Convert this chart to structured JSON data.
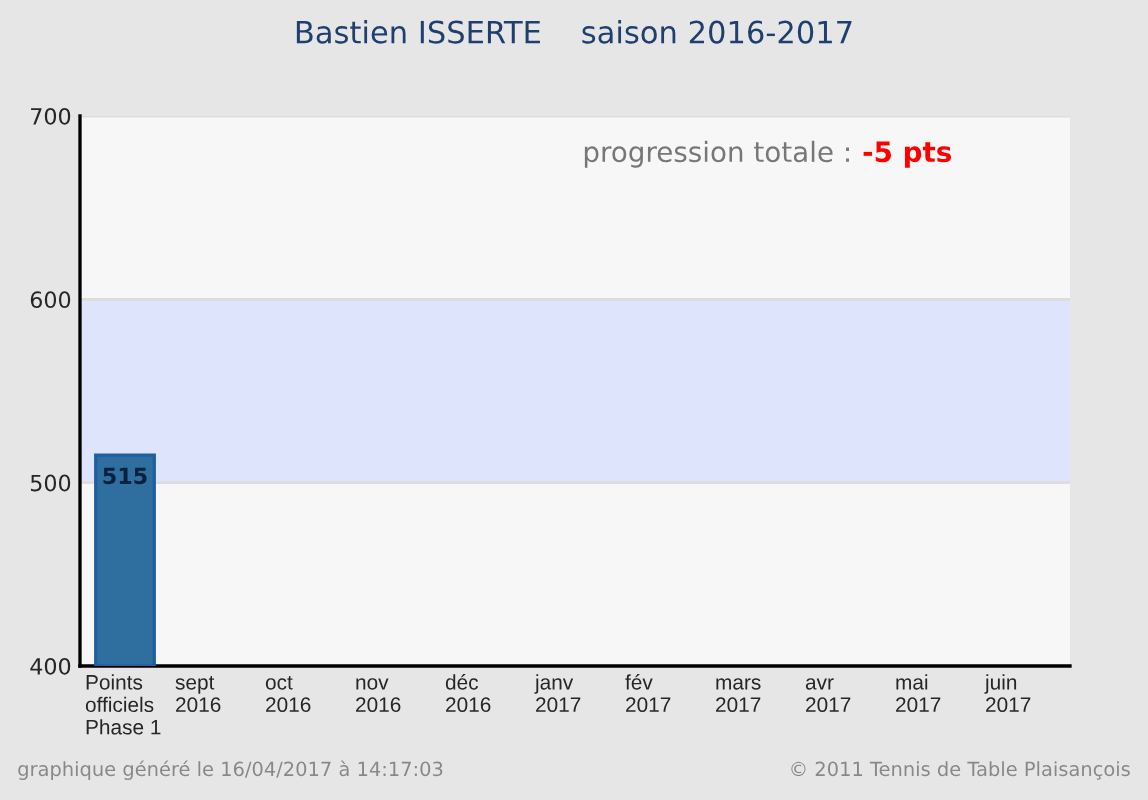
{
  "chart_data": {
    "type": "bar",
    "title": "Bastien ISSERTE    saison 2016-2017",
    "categories": [
      "Points\nofficiels\nPhase 1",
      "sept\n2016",
      "oct\n2016",
      "nov\n2016",
      "déc\n2016",
      "janv\n2017",
      "fév\n2017",
      "mars\n2017",
      "avr\n2017",
      "mai\n2017",
      "juin\n2017"
    ],
    "values": [
      515,
      null,
      null,
      null,
      null,
      null,
      null,
      null,
      null,
      null,
      null
    ],
    "color": "#2f6f9f",
    "ylim": [
      400,
      700
    ],
    "yticks": [
      400,
      500,
      600,
      700
    ],
    "grid": "y",
    "data_labels": true,
    "bands": [
      {
        "axis": "y",
        "from": 500,
        "to": 600,
        "color": "#dde4fc"
      }
    ],
    "annotations": [
      "progression totale :",
      "-5 pts",
      "graphique généré le 16/04/2017 à 14:17:03",
      "© 2011 Tennis de Table Plaisançois"
    ]
  }
}
